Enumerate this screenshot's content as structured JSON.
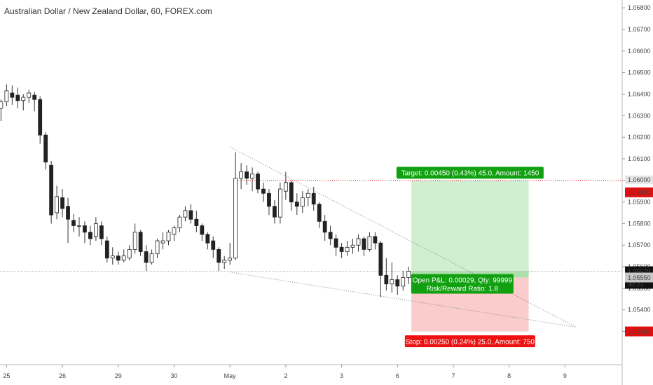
{
  "chart_data": {
    "type": "candlestick",
    "title": "Australian Dollar / New Zealand Dollar, 60, FOREX.com",
    "y_ticks": [
      "1.06800",
      "1.06700",
      "1.06600",
      "1.06500",
      "1.06400",
      "1.06300",
      "1.06200",
      "1.06100",
      "1.06000",
      "1.05900",
      "1.05800",
      "1.05700",
      "1.05600",
      "1.05500",
      "1.05400",
      "1.05300"
    ],
    "x_ticks": [
      {
        "label": "25",
        "index": 1
      },
      {
        "label": "26",
        "index": 11
      },
      {
        "label": "29",
        "index": 21
      },
      {
        "label": "30",
        "index": 31
      },
      {
        "label": "May",
        "index": 41
      },
      {
        "label": "2",
        "index": 51
      },
      {
        "label": "3",
        "index": 61
      },
      {
        "label": "6",
        "index": 71
      },
      {
        "label": "7",
        "index": 81
      },
      {
        "label": "8",
        "index": 91
      },
      {
        "label": "9",
        "index": 101
      }
    ],
    "candles": [
      [
        1.06335,
        1.06375,
        1.06275,
        1.06365
      ],
      [
        1.06365,
        1.06445,
        1.06345,
        1.06415
      ],
      [
        1.06405,
        1.0644,
        1.0635,
        1.06385
      ],
      [
        1.06395,
        1.0643,
        1.06335,
        1.0637
      ],
      [
        1.0637,
        1.064,
        1.06325,
        1.06385
      ],
      [
        1.06385,
        1.0642,
        1.0636,
        1.06405
      ],
      [
        1.06395,
        1.0641,
        1.0632,
        1.06375
      ],
      [
        1.06375,
        1.0639,
        1.0617,
        1.0621
      ],
      [
        1.0621,
        1.06225,
        1.0605,
        1.06085
      ],
      [
        1.0607,
        1.0609,
        1.058,
        1.0584
      ],
      [
        1.0585,
        1.05975,
        1.0582,
        1.05925
      ],
      [
        1.0592,
        1.0596,
        1.0583,
        1.0587
      ],
      [
        1.0588,
        1.0592,
        1.0571,
        1.0582
      ],
      [
        1.05815,
        1.05845,
        1.0576,
        1.0579
      ],
      [
        1.0579,
        1.0583,
        1.0574,
        1.0579
      ],
      [
        1.0579,
        1.0581,
        1.0571,
        1.0576
      ],
      [
        1.0576,
        1.0579,
        1.057,
        1.0573
      ],
      [
        1.0574,
        1.0583,
        1.0572,
        1.058
      ],
      [
        1.0579,
        1.0581,
        1.057,
        1.0573
      ],
      [
        1.0572,
        1.0574,
        1.0562,
        1.0564
      ],
      [
        1.0564,
        1.0569,
        1.0561,
        1.0565
      ],
      [
        1.0565,
        1.0567,
        1.0561,
        1.0563
      ],
      [
        1.0563,
        1.0568,
        1.0562,
        1.0565
      ],
      [
        1.0564,
        1.057,
        1.0563,
        1.0568
      ],
      [
        1.0568,
        1.058,
        1.0566,
        1.0576
      ],
      [
        1.0576,
        1.0577,
        1.0565,
        1.0567
      ],
      [
        1.0567,
        1.057,
        1.0558,
        1.0562
      ],
      [
        1.0562,
        1.0568,
        1.0561,
        1.0566
      ],
      [
        1.0566,
        1.0573,
        1.0564,
        1.0572
      ],
      [
        1.0571,
        1.0576,
        1.0568,
        1.0572
      ],
      [
        1.0572,
        1.0577,
        1.057,
        1.0576
      ],
      [
        1.0575,
        1.0579,
        1.0572,
        1.0578
      ],
      [
        1.0578,
        1.0584,
        1.0576,
        1.0583
      ],
      [
        1.0583,
        1.0588,
        1.0581,
        1.0586
      ],
      [
        1.0586,
        1.0589,
        1.058,
        1.0582
      ],
      [
        1.0582,
        1.0586,
        1.0576,
        1.0579
      ],
      [
        1.0579,
        1.058,
        1.0572,
        1.0575
      ],
      [
        1.0575,
        1.0576,
        1.0568,
        1.0571
      ],
      [
        1.0572,
        1.0574,
        1.0564,
        1.0568
      ],
      [
        1.0568,
        1.0569,
        1.0558,
        1.0562
      ],
      [
        1.0562,
        1.0565,
        1.0559,
        1.0563
      ],
      [
        1.0563,
        1.0571,
        1.0561,
        1.0564
      ],
      [
        1.0564,
        1.0613,
        1.0563,
        1.0601
      ],
      [
        1.0601,
        1.0608,
        1.0596,
        1.0604
      ],
      [
        1.0604,
        1.0607,
        1.0598,
        1.0601
      ],
      [
        1.0601,
        1.0606,
        1.0595,
        1.0603
      ],
      [
        1.0603,
        1.0604,
        1.0594,
        1.0596
      ],
      [
        1.0596,
        1.0599,
        1.059,
        1.0594
      ],
      [
        1.0594,
        1.0596,
        1.0584,
        1.0588
      ],
      [
        1.0588,
        1.0591,
        1.058,
        1.0583
      ],
      [
        1.0583,
        1.0599,
        1.058,
        1.0596
      ],
      [
        1.0595,
        1.0604,
        1.0591,
        1.0599
      ],
      [
        1.0599,
        1.06,
        1.0586,
        1.059
      ],
      [
        1.059,
        1.0594,
        1.0584,
        1.0588
      ],
      [
        1.0588,
        1.0595,
        1.0585,
        1.0592
      ],
      [
        1.0592,
        1.0596,
        1.0588,
        1.0594
      ],
      [
        1.0594,
        1.0597,
        1.0586,
        1.0589
      ],
      [
        1.0589,
        1.059,
        1.0578,
        1.0581
      ],
      [
        1.0581,
        1.0584,
        1.0572,
        1.0576
      ],
      [
        1.0576,
        1.0579,
        1.057,
        1.0573
      ],
      [
        1.0573,
        1.0575,
        1.0565,
        1.0569
      ],
      [
        1.0569,
        1.0571,
        1.0564,
        1.0567
      ],
      [
        1.0567,
        1.0572,
        1.0565,
        1.0569
      ],
      [
        1.0569,
        1.0573,
        1.0566,
        1.057
      ],
      [
        1.057,
        1.0575,
        1.0567,
        1.0573
      ],
      [
        1.0573,
        1.0574,
        1.0565,
        1.0568
      ],
      [
        1.0568,
        1.0576,
        1.0567,
        1.0574
      ],
      [
        1.0574,
        1.0576,
        1.0568,
        1.0571
      ],
      [
        1.0571,
        1.0572,
        1.0546,
        1.0556
      ],
      [
        1.0556,
        1.0564,
        1.0549,
        1.0552
      ],
      [
        1.0552,
        1.0562,
        1.0548,
        1.0554
      ],
      [
        1.0554,
        1.0556,
        1.0547,
        1.0551
      ],
      [
        1.0551,
        1.0558,
        1.0549,
        1.0555
      ],
      [
        1.0555,
        1.056,
        1.0552,
        1.05579
      ]
    ],
    "ylim": [
      1.0524,
      1.0682
    ],
    "levels": {
      "target_price": "1.06000",
      "current_price": "1.05579",
      "countdown": "40:27",
      "entry_price": "1.05550",
      "stop_price": "1.05300"
    },
    "target_value": 1.06,
    "current_value": 1.05579,
    "entry_value": 1.0555,
    "stop_value": 1.053,
    "wedge": {
      "upper": [
        [
          41,
          1.06155
        ],
        [
          103,
          1.0532
        ]
      ],
      "lower": [
        [
          41,
          1.05575
        ],
        [
          103,
          1.0532
        ]
      ]
    },
    "position": {
      "start_index": 73.5,
      "end_index": 94.5,
      "target_label": "Target: 0.00450 (0.43%) 45.0, Amount: 1450",
      "stop_label": "Stop: 0.00250 (0.24%) 25.0, Amount: 750",
      "pnl_label": "Open P&L: 0.00029, Qty: 99999",
      "rr_label": "Risk/Reward Ratio: 1.8"
    },
    "colors": {
      "target_zone": "#c8ebc8",
      "stop_zone": "#f9c3c3",
      "target_badge": "#10a010",
      "stop_badge": "#ee1111",
      "price_badge": "#111111",
      "entry_badge": "#c8c8c8"
    }
  }
}
